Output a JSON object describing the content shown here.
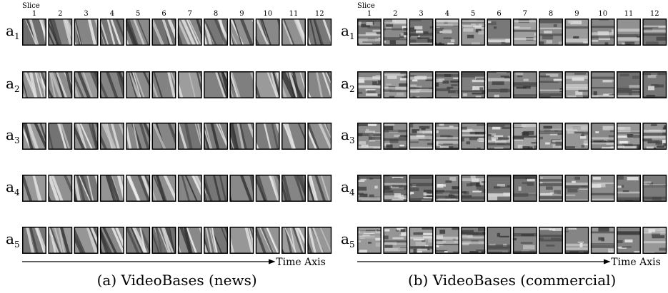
{
  "panels": [
    {
      "slice_label": "Slice",
      "slices": [
        1,
        2,
        3,
        4,
        5,
        6,
        7,
        8,
        9,
        10,
        11,
        12
      ],
      "rows": [
        {
          "letter": "a",
          "index": "1"
        },
        {
          "letter": "a",
          "index": "2"
        },
        {
          "letter": "a",
          "index": "3"
        },
        {
          "letter": "a",
          "index": "4"
        },
        {
          "letter": "a",
          "index": "5"
        }
      ],
      "axis_label": "Time Axis",
      "caption": "(a) VideoBases (news)"
    },
    {
      "slice_label": "Slice",
      "slices": [
        1,
        2,
        3,
        4,
        5,
        6,
        7,
        8,
        9,
        10,
        11,
        12
      ],
      "rows": [
        {
          "letter": "a",
          "index": "1"
        },
        {
          "letter": "a",
          "index": "2"
        },
        {
          "letter": "a",
          "index": "3"
        },
        {
          "letter": "a",
          "index": "4"
        },
        {
          "letter": "a",
          "index": "5"
        }
      ],
      "axis_label": "Time Axis",
      "caption": "(b) VideoBases (commercial)"
    }
  ]
}
